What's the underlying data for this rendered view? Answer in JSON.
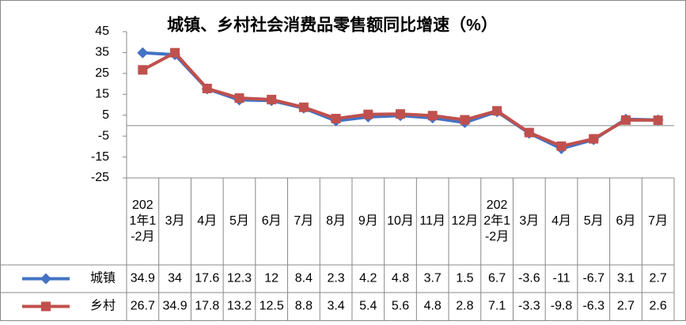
{
  "chart_data": {
    "type": "line",
    "title": "城镇、乡村社会消费品零售额同比增速（%）",
    "categories": [
      "2021年1-2月",
      "3月",
      "4月",
      "5月",
      "6月",
      "7月",
      "8月",
      "9月",
      "10月",
      "11月",
      "12月",
      "2022年1-2月",
      "3月",
      "4月",
      "5月",
      "6月",
      "7月"
    ],
    "series": [
      {
        "name": "城镇",
        "color": "#4472c4",
        "marker": "diamond",
        "values": [
          34.9,
          34,
          17.6,
          12.3,
          12,
          8.4,
          2.3,
          4.2,
          4.8,
          3.7,
          1.5,
          6.7,
          -3.6,
          -11,
          -6.7,
          3.1,
          2.7
        ]
      },
      {
        "name": "乡村",
        "color": "#c0504d",
        "marker": "square",
        "values": [
          26.7,
          34.9,
          17.8,
          13.2,
          12.5,
          8.8,
          3.4,
          5.4,
          5.6,
          4.8,
          2.8,
          7.1,
          -3.3,
          -9.8,
          -6.3,
          2.7,
          2.6
        ]
      }
    ],
    "ylim": [
      -25,
      45
    ],
    "yticks": [
      -25,
      -15,
      -5,
      5,
      15,
      25,
      35,
      45
    ],
    "grid": false,
    "data_table": true
  }
}
